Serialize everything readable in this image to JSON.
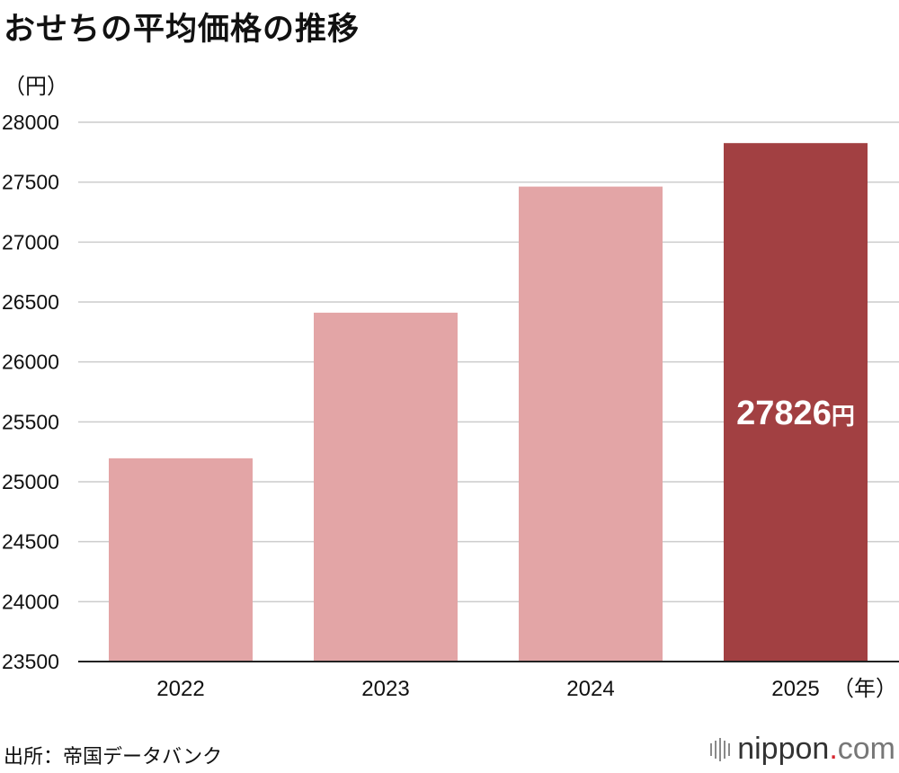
{
  "title": "おせちの平均価格の推移",
  "unit_label": "（円）",
  "source": "出所：帝国データバンク",
  "logo": {
    "name": "nippon",
    "dot": ".",
    "suffix": "com"
  },
  "chart_data": {
    "type": "bar",
    "title": "おせちの平均価格の推移",
    "ylabel": "（円）",
    "xlabel": "（年）",
    "categories": [
      "2022",
      "2023",
      "2024",
      "2025"
    ],
    "values": [
      25196,
      26411,
      27463,
      27826
    ],
    "ylim": [
      23500,
      28000
    ],
    "yticks": [
      23500,
      24000,
      24500,
      25000,
      25500,
      26000,
      26500,
      27000,
      27500,
      28000
    ],
    "grid": true,
    "bar_colors": [
      "#e3a5a6",
      "#e3a5a6",
      "#e3a5a6",
      "#a24042"
    ],
    "annotation": {
      "category": "2025",
      "value_text": "27826",
      "unit": "円",
      "color": "#ffffff"
    }
  }
}
